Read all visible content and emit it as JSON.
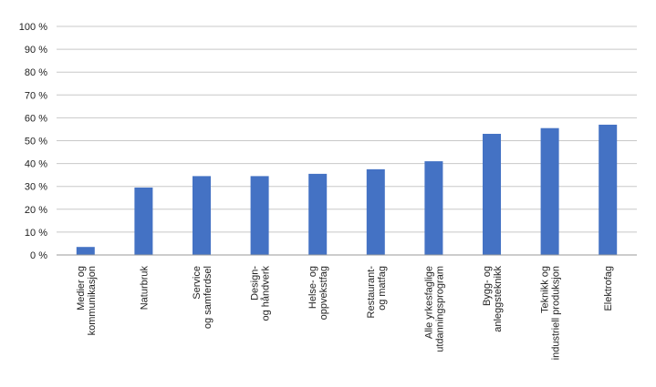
{
  "chart_data": {
    "type": "bar",
    "title": "",
    "xlabel": "",
    "ylabel": "",
    "ylim": [
      0,
      100
    ],
    "yticks": [
      0,
      10,
      20,
      30,
      40,
      50,
      60,
      70,
      80,
      90,
      100
    ],
    "ytick_labels": [
      "0 %",
      "10 %",
      "20 %",
      "30 %",
      "40 %",
      "50 %",
      "60 %",
      "70 %",
      "80 %",
      "90 %",
      "100 %"
    ],
    "grid": true,
    "legend": "none",
    "bar_color": "#4472c4",
    "categories": [
      [
        "Medier og",
        "kommunikasjon"
      ],
      [
        "Naturbruk"
      ],
      [
        "Service",
        "og samferdsel"
      ],
      [
        "Design-",
        "og håndverk"
      ],
      [
        "Helse- og",
        "oppvekstfag"
      ],
      [
        "Restaurant-",
        "og matfag"
      ],
      [
        "Alle yrkesfaglige",
        "utdanningsprogram"
      ],
      [
        "Bygg- og",
        "anleggsteknikk"
      ],
      [
        "Teknikk og",
        "industriell produksjon"
      ],
      [
        "Elektrofag"
      ]
    ],
    "values": [
      3.5,
      29.5,
      34.5,
      34.5,
      35.5,
      37.5,
      41,
      53,
      55.5,
      57
    ]
  }
}
